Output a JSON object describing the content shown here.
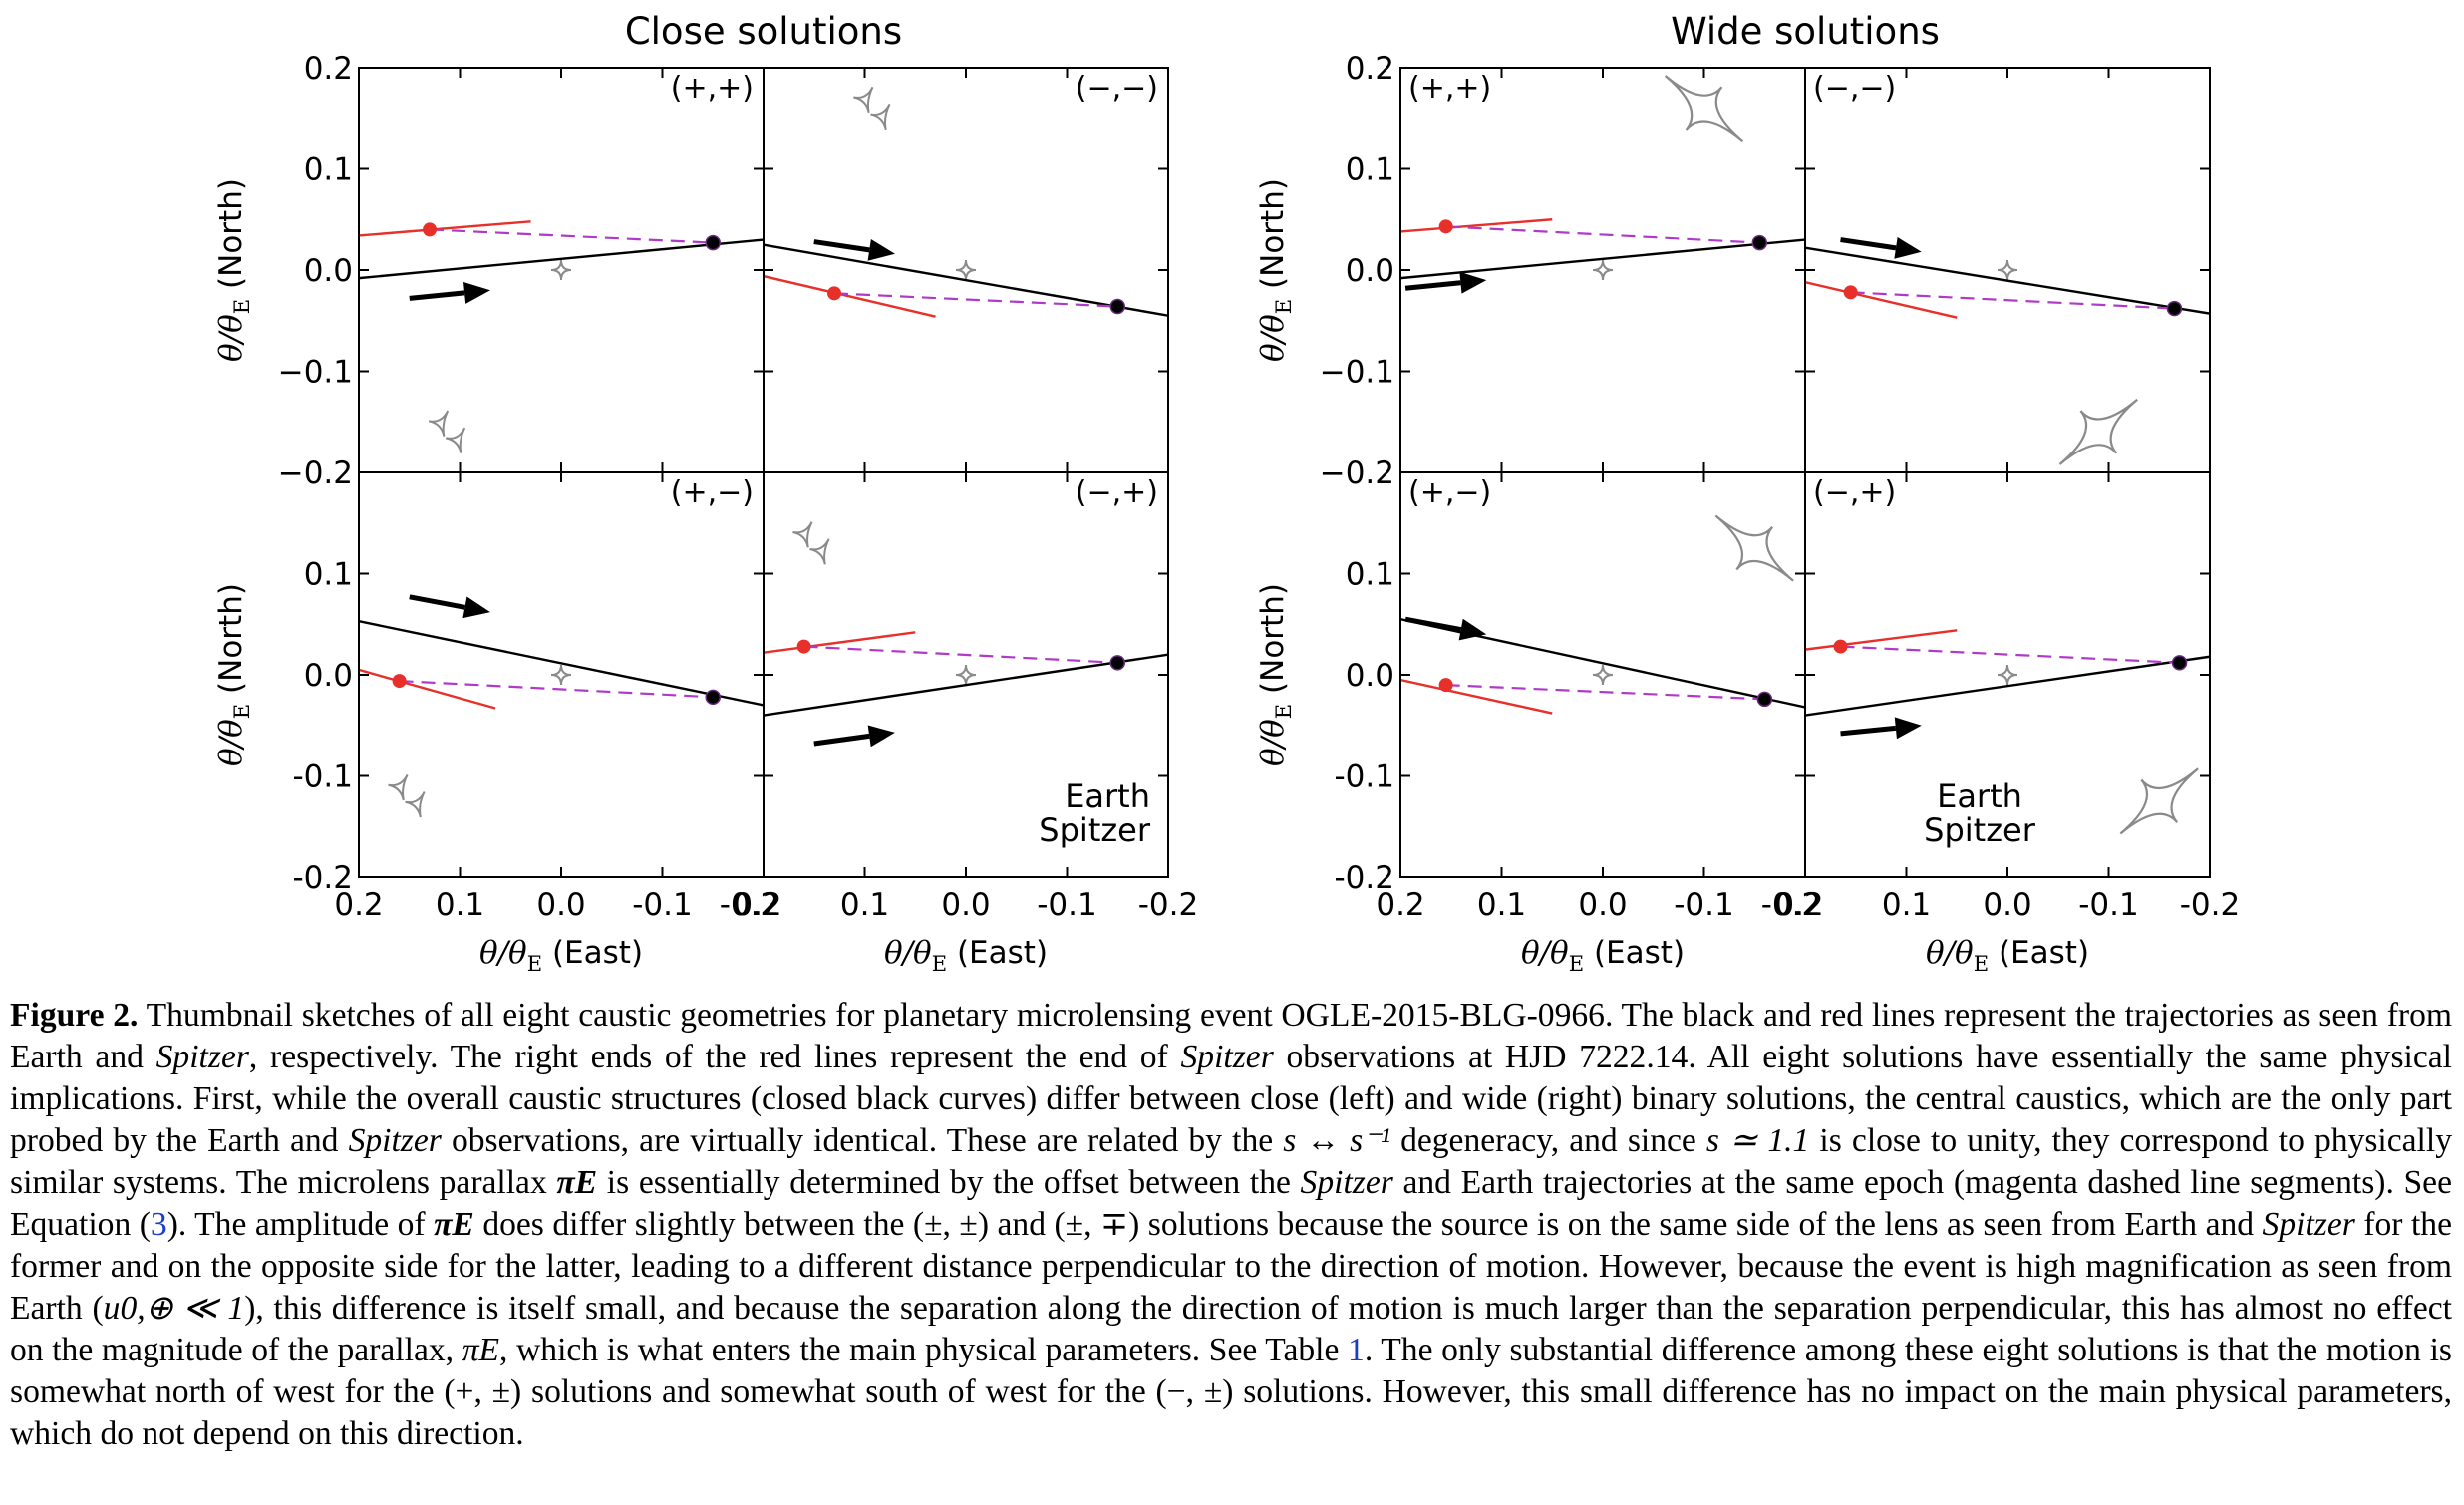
{
  "figure": {
    "groups": [
      {
        "title": "Close solutions",
        "panels": [
          {
            "label": "(+,+)",
            "earth_traj": [
              [
                0.2,
                -0.008
              ],
              [
                -0.2,
                0.03
              ]
            ],
            "spitzer_traj": [
              [
                0.2,
                0.034
              ],
              [
                0.03,
                0.048
              ]
            ],
            "spitzer_dot": [
              0.13,
              0.04
            ],
            "earth_dot": [
              -0.15,
              0.027
            ],
            "arrow": [
              [
                0.15,
                -0.028
              ],
              [
                0.07,
                -0.02
              ]
            ],
            "caustics": [
              {
                "type": "central",
                "at": [
                  0.0,
                  0.0
                ]
              },
              {
                "type": "planetary-pair",
                "at": [
                  0.11,
                  -0.16
                ],
                "size": 0.03
              }
            ]
          },
          {
            "label": "(−,−)",
            "earth_traj": [
              [
                0.2,
                0.025
              ],
              [
                -0.2,
                -0.045
              ]
            ],
            "spitzer_traj": [
              [
                0.2,
                -0.006
              ],
              [
                0.03,
                -0.046
              ]
            ],
            "spitzer_dot": [
              0.13,
              -0.023
            ],
            "earth_dot": [
              -0.15,
              -0.036
            ],
            "arrow": [
              [
                0.15,
                0.028
              ],
              [
                0.07,
                0.016
              ]
            ],
            "caustics": [
              {
                "type": "central",
                "at": [
                  0.0,
                  0.0
                ]
              },
              {
                "type": "planetary-pair",
                "at": [
                  0.09,
                  0.16
                ],
                "size": 0.03
              }
            ]
          },
          {
            "label": "(+,−)",
            "earth_traj": [
              [
                0.2,
                0.053
              ],
              [
                -0.2,
                -0.03
              ]
            ],
            "spitzer_traj": [
              [
                0.2,
                0.005
              ],
              [
                0.065,
                -0.033
              ]
            ],
            "spitzer_dot": [
              0.16,
              -0.006
            ],
            "earth_dot": [
              -0.15,
              -0.022
            ],
            "arrow": [
              [
                0.15,
                0.077
              ],
              [
                0.07,
                0.062
              ]
            ],
            "caustics": [
              {
                "type": "central",
                "at": [
                  0.0,
                  0.0
                ]
              },
              {
                "type": "planetary-pair",
                "at": [
                  0.15,
                  -0.12
                ],
                "size": 0.03
              }
            ]
          },
          {
            "label": "(−,+)",
            "earth_traj": [
              [
                0.2,
                -0.04
              ],
              [
                -0.2,
                0.02
              ]
            ],
            "spitzer_traj": [
              [
                0.2,
                0.022
              ],
              [
                0.05,
                0.042
              ]
            ],
            "spitzer_dot": [
              0.16,
              0.028
            ],
            "earth_dot": [
              -0.15,
              0.012
            ],
            "arrow": [
              [
                0.15,
                -0.068
              ],
              [
                0.07,
                -0.057
              ]
            ],
            "caustics": [
              {
                "type": "central",
                "at": [
                  0.0,
                  0.0
                ]
              },
              {
                "type": "planetary-pair",
                "at": [
                  0.15,
                  0.13
                ],
                "size": 0.03
              }
            ]
          }
        ]
      },
      {
        "title": "Wide solutions",
        "panels": [
          {
            "label": "(+,+)",
            "earth_traj": [
              [
                0.2,
                -0.008
              ],
              [
                -0.2,
                0.03
              ]
            ],
            "spitzer_traj": [
              [
                0.2,
                0.038
              ],
              [
                0.05,
                0.05
              ]
            ],
            "spitzer_dot": [
              0.155,
              0.043
            ],
            "earth_dot": [
              -0.155,
              0.027
            ],
            "arrow": [
              [
                0.195,
                -0.018
              ],
              [
                0.115,
                -0.01
              ]
            ],
            "caustics": [
              {
                "type": "central",
                "at": [
                  0.0,
                  0.0
                ]
              },
              {
                "type": "diamond",
                "at": [
                  -0.1,
                  0.16
                ],
                "size": 0.05
              }
            ]
          },
          {
            "label": "(−,−)",
            "earth_traj": [
              [
                0.2,
                0.022
              ],
              [
                -0.2,
                -0.043
              ]
            ],
            "spitzer_traj": [
              [
                0.2,
                -0.012
              ],
              [
                0.05,
                -0.047
              ]
            ],
            "spitzer_dot": [
              0.155,
              -0.022
            ],
            "earth_dot": [
              -0.165,
              -0.038
            ],
            "arrow": [
              [
                0.165,
                0.03
              ],
              [
                0.085,
                0.018
              ]
            ],
            "caustics": [
              {
                "type": "central",
                "at": [
                  0.0,
                  0.0
                ]
              },
              {
                "type": "diamond",
                "at": [
                  -0.09,
                  -0.16
                ],
                "size": 0.05
              }
            ]
          },
          {
            "label": "(+,−)",
            "earth_traj": [
              [
                0.2,
                0.055
              ],
              [
                -0.2,
                -0.032
              ]
            ],
            "spitzer_traj": [
              [
                0.2,
                -0.005
              ],
              [
                0.05,
                -0.038
              ]
            ],
            "spitzer_dot": [
              0.155,
              -0.01
            ],
            "earth_dot": [
              -0.16,
              -0.024
            ],
            "arrow": [
              [
                0.195,
                0.055
              ],
              [
                0.115,
                0.04
              ]
            ],
            "caustics": [
              {
                "type": "central",
                "at": [
                  0.0,
                  0.0
                ]
              },
              {
                "type": "diamond",
                "at": [
                  -0.15,
                  0.125
                ],
                "size": 0.05
              }
            ]
          },
          {
            "label": "(−,+)",
            "earth_traj": [
              [
                0.2,
                -0.04
              ],
              [
                -0.2,
                0.018
              ]
            ],
            "spitzer_traj": [
              [
                0.2,
                0.025
              ],
              [
                0.05,
                0.044
              ]
            ],
            "spitzer_dot": [
              0.165,
              0.028
            ],
            "earth_dot": [
              -0.17,
              0.012
            ],
            "arrow": [
              [
                0.165,
                -0.058
              ],
              [
                0.085,
                -0.05
              ]
            ],
            "caustics": [
              {
                "type": "central",
                "at": [
                  0.0,
                  0.0
                ]
              },
              {
                "type": "diamond",
                "at": [
                  -0.15,
                  -0.125
                ],
                "size": 0.05
              }
            ]
          }
        ]
      }
    ],
    "y_ticks_top": [
      "0.2",
      "0.1",
      "0.0",
      "−0.1",
      "−0.2"
    ],
    "y_ticks_bottom": [
      "0.1",
      "0.0",
      "-0.1",
      "-0.2"
    ],
    "x_ticks": [
      "0.2",
      "0.1",
      "0.0",
      "-0.1",
      "-0.2"
    ],
    "x_tick_last": "-0.2",
    "y_label": "θ/θE (North)",
    "y_label_pre": "θ/θ",
    "y_label_sub": "E",
    "y_label_post": " (North)",
    "x_label_pre": "θ/θ",
    "x_label_sub": "E",
    "x_label_post": " (East)",
    "legend": {
      "earth": "Earth",
      "spitzer": "Spitzer"
    },
    "colors": {
      "earth": "#000000",
      "spitzer": "#e8302a",
      "offset": "#b03ac8",
      "caustic": "#8a8a8a"
    }
  },
  "caption": {
    "label": "Figure 2.",
    "p1": " Thumbnail sketches of all eight caustic geometries for planetary microlensing event OGLE-2015-BLG-0966. The black and red lines represent the trajectories as seen from Earth and ",
    "spitzer1": "Spitzer",
    "p2": ", respectively. The right ends of the red lines represent the end of ",
    "spitzer2": "Spitzer",
    "p3": " observations at HJD 7222.14. All eight solutions have essentially the same physical implications. First, while the overall caustic structures (closed black curves) differ between close (left) and wide (right) binary solutions, the central caustics, which are the only part probed by the Earth and ",
    "spitzer3": "Spitzer",
    "p4": " observations, are virtually identical. These are related by the ",
    "s_deg": "s ↔ s⁻¹",
    "p5": " degeneracy, and since ",
    "s_val": "s ≃ 1.1",
    "p6": " is close to unity, they correspond to physically similar systems. The microlens parallax ",
    "pi_e1": "πE",
    "p7": " is essentially determined by the offset between the ",
    "spitzer4": "Spitzer",
    "p8": " and Earth trajectories at the same epoch (magenta dashed line segments). See Equation (",
    "eq_ref": "3",
    "p9": "). The amplitude of ",
    "pi_e2": "πE",
    "p10": " does differ slightly between the (±, ±) and (±, ∓) solutions because the source is on the same side of the lens as seen from Earth and ",
    "spitzer5": "Spitzer",
    "p11": " for the former and on the opposite side for the latter, leading to a different distance perpendicular to the direction of motion. However, because the event is high magnification as seen from Earth (",
    "u0": "u0,⊕ ≪ 1",
    "p12": "), this difference is itself small, and because the separation along the direction of motion is much larger than the separation perpendicular, this has almost no effect on the magnitude of the parallax, ",
    "pi_e3": "πE",
    "p13": ", which is what enters the main physical parameters. See Table ",
    "table_ref": "1",
    "p14": ". The only substantial difference among these eight solutions is that the motion is somewhat north of west for the (+, ±) solutions and somewhat south of west for the (−, ±) solutions. However, this small difference has no impact on the main physical parameters, which do not depend on this direction."
  }
}
